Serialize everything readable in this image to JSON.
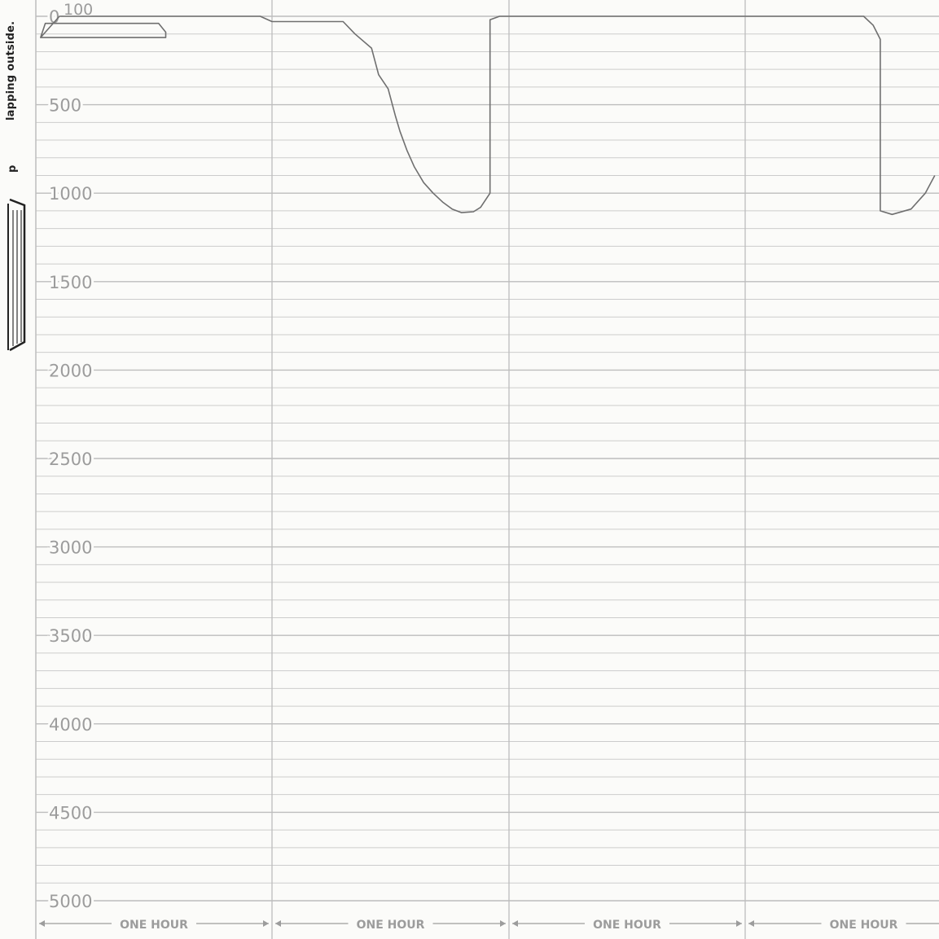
{
  "side_label": "lapping outside.",
  "side_char": "p",
  "colors": {
    "paper": "#fbfbf9",
    "grid": "#bdbdbd",
    "axis_text": "#9c9c9c",
    "trace": "#6f6f6f"
  },
  "chart_data": {
    "type": "line",
    "title": "",
    "xlabel": "",
    "ylabel": "",
    "y_reversed": true,
    "ylim": [
      0,
      5000
    ],
    "y_ticks": [
      0,
      500,
      1000,
      1500,
      2000,
      2500,
      3000,
      3500,
      4000,
      4500,
      5000
    ],
    "y_tick_labels": [
      "0",
      "500",
      "1000",
      "1500",
      "2000",
      "2500",
      "3000",
      "3500",
      "4000",
      "4500",
      "5000"
    ],
    "y_extra_label": "100",
    "y_minor_step": 100,
    "x_unit": "hours",
    "xlim": [
      0,
      3.8
    ],
    "x_sections": [
      {
        "label": "ONE HOUR",
        "start": 0,
        "end": 1
      },
      {
        "label": "ONE HOUR",
        "start": 1,
        "end": 2
      },
      {
        "label": "ONE HOUR",
        "start": 2,
        "end": 3
      },
      {
        "label": "ONE HOUR",
        "start": 3,
        "end": 3.8
      }
    ],
    "series": [
      {
        "points": [
          [
            0.02,
            120
          ],
          [
            0.04,
            40
          ],
          [
            0.08,
            40
          ],
          [
            0.3,
            40
          ],
          [
            0.52,
            40
          ],
          [
            0.55,
            90
          ],
          [
            0.55,
            120
          ],
          [
            0.4,
            120
          ],
          [
            0.1,
            120
          ],
          [
            0.02,
            120
          ],
          [
            0.1,
            0
          ],
          [
            0.95,
            0
          ],
          [
            1.0,
            30
          ],
          [
            1.3,
            30
          ],
          [
            1.35,
            100
          ],
          [
            1.42,
            180
          ],
          [
            1.45,
            330
          ],
          [
            1.49,
            410
          ],
          [
            1.52,
            560
          ],
          [
            1.54,
            650
          ],
          [
            1.57,
            760
          ],
          [
            1.6,
            850
          ],
          [
            1.64,
            940
          ],
          [
            1.68,
            1000
          ],
          [
            1.72,
            1050
          ],
          [
            1.76,
            1090
          ],
          [
            1.8,
            1110
          ],
          [
            1.85,
            1105
          ],
          [
            1.88,
            1080
          ],
          [
            1.92,
            1000
          ],
          [
            1.92,
            20
          ],
          [
            1.96,
            0
          ],
          [
            3.5,
            0
          ],
          [
            3.54,
            50
          ],
          [
            3.57,
            130
          ],
          [
            3.57,
            1100
          ],
          [
            3.62,
            1120
          ],
          [
            3.7,
            1090
          ],
          [
            3.76,
            1000
          ],
          [
            3.8,
            900
          ]
        ]
      }
    ]
  }
}
